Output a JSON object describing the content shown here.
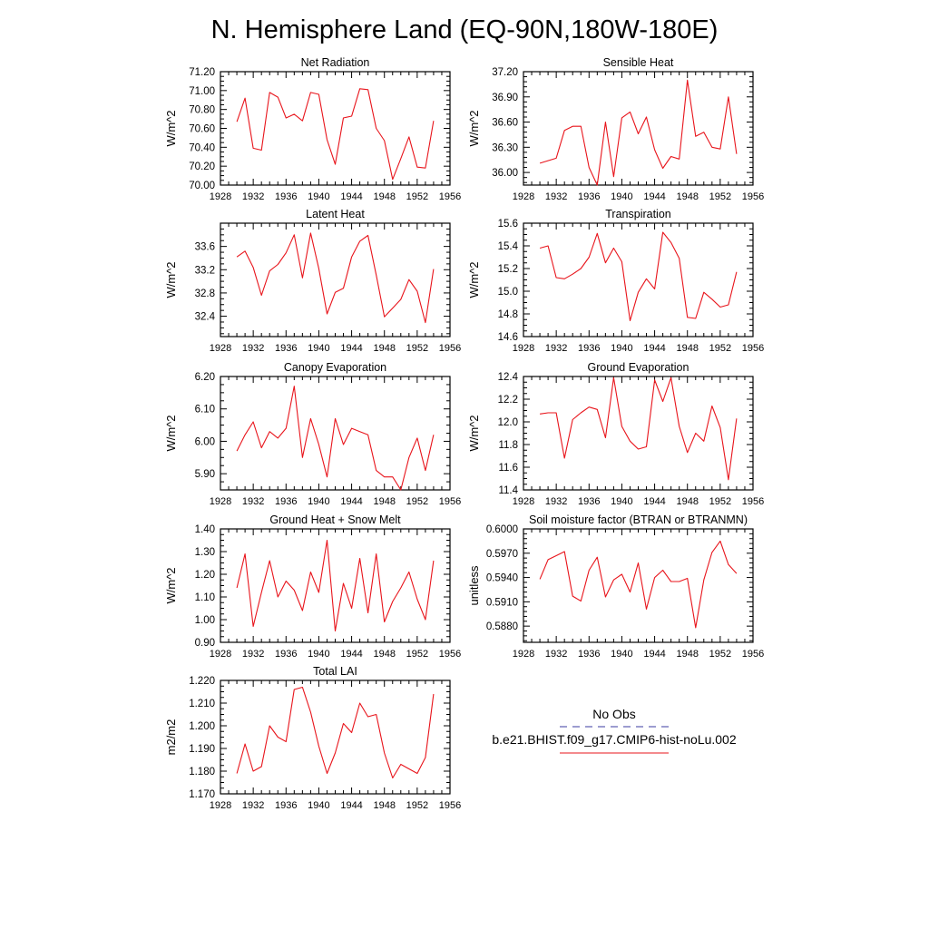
{
  "title": "N. Hemisphere Land (EQ-90N,180W-180E)",
  "colors": {
    "model": "#e8141b",
    "obs": "#3a3aa0",
    "axis": "#000000"
  },
  "legend": {
    "obs_label": "No Obs",
    "model_label": "b.e21.BHIST.f09_g17.CMIP6-hist-noLu.002"
  },
  "chart_data": [
    {
      "type": "line",
      "title": "Net Radiation",
      "ylabel": "W/m^2",
      "xlim": [
        1928,
        1956
      ],
      "xticks": [
        1928,
        1932,
        1936,
        1940,
        1944,
        1948,
        1952,
        1956
      ],
      "ylim": [
        70.0,
        71.2
      ],
      "yticks": [
        "70.00",
        "70.20",
        "70.40",
        "70.60",
        "70.80",
        "71.00",
        "71.20"
      ],
      "yminor": 4,
      "series": [
        {
          "x": [
            1930,
            1931,
            1932,
            1933,
            1934,
            1935,
            1936,
            1937,
            1938,
            1939,
            1940,
            1941,
            1942,
            1943,
            1944,
            1945,
            1946,
            1947,
            1948,
            1949,
            1950,
            1951,
            1952,
            1953,
            1954
          ],
          "y": [
            70.67,
            70.92,
            70.39,
            70.37,
            70.98,
            70.93,
            70.71,
            70.75,
            70.68,
            70.98,
            70.96,
            70.48,
            70.22,
            70.71,
            70.73,
            71.02,
            71.01,
            70.6,
            70.47,
            70.06,
            70.28,
            70.51,
            70.19,
            70.18,
            70.68
          ]
        }
      ]
    },
    {
      "type": "line",
      "title": "Sensible Heat",
      "ylabel": "W/m^2",
      "xlim": [
        1928,
        1956
      ],
      "xticks": [
        1928,
        1932,
        1936,
        1940,
        1944,
        1948,
        1952,
        1956
      ],
      "ylim": [
        35.85,
        37.2
      ],
      "yticks": [
        "36.00",
        "36.30",
        "36.60",
        "36.90",
        "37.20"
      ],
      "yminor": 5,
      "series": [
        {
          "x": [
            1930,
            1931,
            1932,
            1933,
            1934,
            1935,
            1936,
            1937,
            1938,
            1939,
            1940,
            1941,
            1942,
            1943,
            1944,
            1945,
            1946,
            1947,
            1948,
            1949,
            1950,
            1951,
            1952,
            1953,
            1954
          ],
          "y": [
            36.11,
            36.14,
            36.17,
            36.5,
            36.55,
            36.55,
            36.06,
            35.85,
            36.6,
            35.95,
            36.65,
            36.72,
            36.46,
            36.66,
            36.27,
            36.05,
            36.19,
            36.16,
            37.1,
            36.43,
            36.48,
            36.3,
            36.28,
            36.9,
            36.22
          ]
        }
      ]
    },
    {
      "type": "line",
      "title": "Latent Heat",
      "ylabel": "W/m^2",
      "xlim": [
        1928,
        1956
      ],
      "xticks": [
        1928,
        1932,
        1936,
        1940,
        1944,
        1948,
        1952,
        1956
      ],
      "ylim": [
        32.05,
        34.0
      ],
      "yticks": [
        "32.4",
        "32.8",
        "33.2",
        "33.6"
      ],
      "yminor": 4,
      "series": [
        {
          "x": [
            1930,
            1931,
            1932,
            1933,
            1934,
            1935,
            1936,
            1937,
            1938,
            1939,
            1940,
            1941,
            1942,
            1943,
            1944,
            1945,
            1946,
            1947,
            1948,
            1949,
            1950,
            1951,
            1952,
            1953,
            1954
          ],
          "y": [
            33.42,
            33.52,
            33.24,
            32.76,
            33.18,
            33.29,
            33.49,
            33.8,
            33.06,
            33.83,
            33.22,
            32.44,
            32.81,
            32.88,
            33.42,
            33.69,
            33.79,
            33.11,
            32.39,
            32.54,
            32.69,
            33.03,
            32.83,
            32.29,
            33.21
          ]
        }
      ]
    },
    {
      "type": "line",
      "title": "Transpiration",
      "ylabel": "W/m^2",
      "xlim": [
        1928,
        1956
      ],
      "xticks": [
        1928,
        1932,
        1936,
        1940,
        1944,
        1948,
        1952,
        1956
      ],
      "ylim": [
        14.6,
        15.6
      ],
      "yticks": [
        "14.6",
        "14.8",
        "15.0",
        "15.2",
        "15.4",
        "15.6"
      ],
      "yminor": 4,
      "series": [
        {
          "x": [
            1930,
            1931,
            1932,
            1933,
            1934,
            1935,
            1936,
            1937,
            1938,
            1939,
            1940,
            1941,
            1942,
            1943,
            1944,
            1945,
            1946,
            1947,
            1948,
            1949,
            1950,
            1951,
            1952,
            1953,
            1954
          ],
          "y": [
            15.38,
            15.4,
            15.12,
            15.11,
            15.15,
            15.2,
            15.3,
            15.51,
            15.25,
            15.38,
            15.26,
            14.74,
            14.99,
            15.11,
            15.02,
            15.52,
            15.43,
            15.29,
            14.77,
            14.76,
            14.99,
            14.93,
            14.86,
            14.88,
            15.17
          ]
        }
      ]
    },
    {
      "type": "line",
      "title": "Canopy Evaporation",
      "ylabel": "W/m^2",
      "xlim": [
        1928,
        1956
      ],
      "xticks": [
        1928,
        1932,
        1936,
        1940,
        1944,
        1948,
        1952,
        1956
      ],
      "ylim": [
        5.85,
        6.2
      ],
      "yticks": [
        "5.90",
        "6.00",
        "6.10",
        "6.20"
      ],
      "yminor": 4,
      "series": [
        {
          "x": [
            1930,
            1931,
            1932,
            1933,
            1934,
            1935,
            1936,
            1937,
            1938,
            1939,
            1940,
            1941,
            1942,
            1943,
            1944,
            1945,
            1946,
            1947,
            1948,
            1949,
            1950,
            1951,
            1952,
            1953,
            1954
          ],
          "y": [
            5.97,
            6.02,
            6.06,
            5.98,
            6.03,
            6.01,
            6.04,
            6.17,
            5.95,
            6.07,
            5.99,
            5.89,
            6.07,
            5.99,
            6.04,
            6.03,
            6.02,
            5.91,
            5.89,
            5.89,
            5.85,
            5.95,
            6.01,
            5.91,
            6.02
          ]
        }
      ]
    },
    {
      "type": "line",
      "title": "Ground Evaporation",
      "ylabel": "W/m^2",
      "xlim": [
        1928,
        1956
      ],
      "xticks": [
        1928,
        1932,
        1936,
        1940,
        1944,
        1948,
        1952,
        1956
      ],
      "ylim": [
        11.4,
        12.4
      ],
      "yticks": [
        "11.4",
        "11.6",
        "11.8",
        "12.0",
        "12.2",
        "12.4"
      ],
      "yminor": 4,
      "series": [
        {
          "x": [
            1930,
            1931,
            1932,
            1933,
            1934,
            1935,
            1936,
            1937,
            1938,
            1939,
            1940,
            1941,
            1942,
            1943,
            1944,
            1945,
            1946,
            1947,
            1948,
            1949,
            1950,
            1951,
            1952,
            1953,
            1954
          ],
          "y": [
            12.07,
            12.08,
            12.08,
            11.68,
            12.02,
            12.08,
            12.13,
            12.11,
            11.86,
            12.39,
            11.96,
            11.83,
            11.76,
            11.78,
            12.37,
            12.18,
            12.39,
            11.96,
            11.73,
            11.9,
            11.83,
            12.14,
            11.95,
            11.49,
            12.03
          ]
        }
      ]
    },
    {
      "type": "line",
      "title": "Ground Heat + Snow Melt",
      "ylabel": "W/m^2",
      "xlim": [
        1928,
        1956
      ],
      "xticks": [
        1928,
        1932,
        1936,
        1940,
        1944,
        1948,
        1952,
        1956
      ],
      "ylim": [
        0.9,
        1.4
      ],
      "yticks": [
        "0.90",
        "1.00",
        "1.10",
        "1.20",
        "1.30",
        "1.40"
      ],
      "yminor": 4,
      "series": [
        {
          "x": [
            1930,
            1931,
            1932,
            1933,
            1934,
            1935,
            1936,
            1937,
            1938,
            1939,
            1940,
            1941,
            1942,
            1943,
            1944,
            1945,
            1946,
            1947,
            1948,
            1949,
            1950,
            1951,
            1952,
            1953,
            1954
          ],
          "y": [
            1.14,
            1.29,
            0.97,
            1.12,
            1.26,
            1.1,
            1.17,
            1.13,
            1.04,
            1.21,
            1.12,
            1.35,
            0.95,
            1.16,
            1.05,
            1.27,
            1.03,
            1.29,
            0.99,
            1.08,
            1.14,
            1.21,
            1.09,
            1.0,
            1.26
          ]
        }
      ]
    },
    {
      "type": "line",
      "title": "Soil moisture factor (BTRAN or BTRANMN)",
      "ylabel": "unitless",
      "xlim": [
        1928,
        1956
      ],
      "xticks": [
        1928,
        1932,
        1936,
        1940,
        1944,
        1948,
        1952,
        1956
      ],
      "ylim": [
        0.586,
        0.6
      ],
      "yticks": [
        "0.5880",
        "0.5910",
        "0.5940",
        "0.5970",
        "0.6000"
      ],
      "yminor": 5,
      "series": [
        {
          "x": [
            1930,
            1931,
            1932,
            1933,
            1934,
            1935,
            1936,
            1937,
            1938,
            1939,
            1940,
            1941,
            1942,
            1943,
            1944,
            1945,
            1946,
            1947,
            1948,
            1949,
            1950,
            1951,
            1952,
            1953,
            1954
          ],
          "y": [
            0.5938,
            0.5962,
            0.5967,
            0.5972,
            0.5917,
            0.5911,
            0.5949,
            0.5965,
            0.5916,
            0.5937,
            0.5944,
            0.5922,
            0.5958,
            0.5901,
            0.594,
            0.5949,
            0.5935,
            0.5935,
            0.5939,
            0.5878,
            0.5937,
            0.5971,
            0.5985,
            0.5956,
            0.5945
          ]
        }
      ]
    },
    {
      "type": "line",
      "title": "Total LAI",
      "ylabel": "m2/m2",
      "xlim": [
        1928,
        1956
      ],
      "xticks": [
        1928,
        1932,
        1936,
        1940,
        1944,
        1948,
        1952,
        1956
      ],
      "ylim": [
        1.17,
        1.22
      ],
      "yticks": [
        "1.170",
        "1.180",
        "1.190",
        "1.200",
        "1.210",
        "1.220"
      ],
      "yminor": 4,
      "series": [
        {
          "x": [
            1930,
            1931,
            1932,
            1933,
            1934,
            1935,
            1936,
            1937,
            1938,
            1939,
            1940,
            1941,
            1942,
            1943,
            1944,
            1945,
            1946,
            1947,
            1948,
            1949,
            1950,
            1951,
            1952,
            1953,
            1954
          ],
          "y": [
            1.179,
            1.192,
            1.18,
            1.182,
            1.2,
            1.195,
            1.193,
            1.216,
            1.217,
            1.206,
            1.191,
            1.179,
            1.188,
            1.201,
            1.197,
            1.21,
            1.204,
            1.205,
            1.188,
            1.177,
            1.183,
            1.181,
            1.179,
            1.186,
            1.214
          ]
        }
      ]
    }
  ]
}
